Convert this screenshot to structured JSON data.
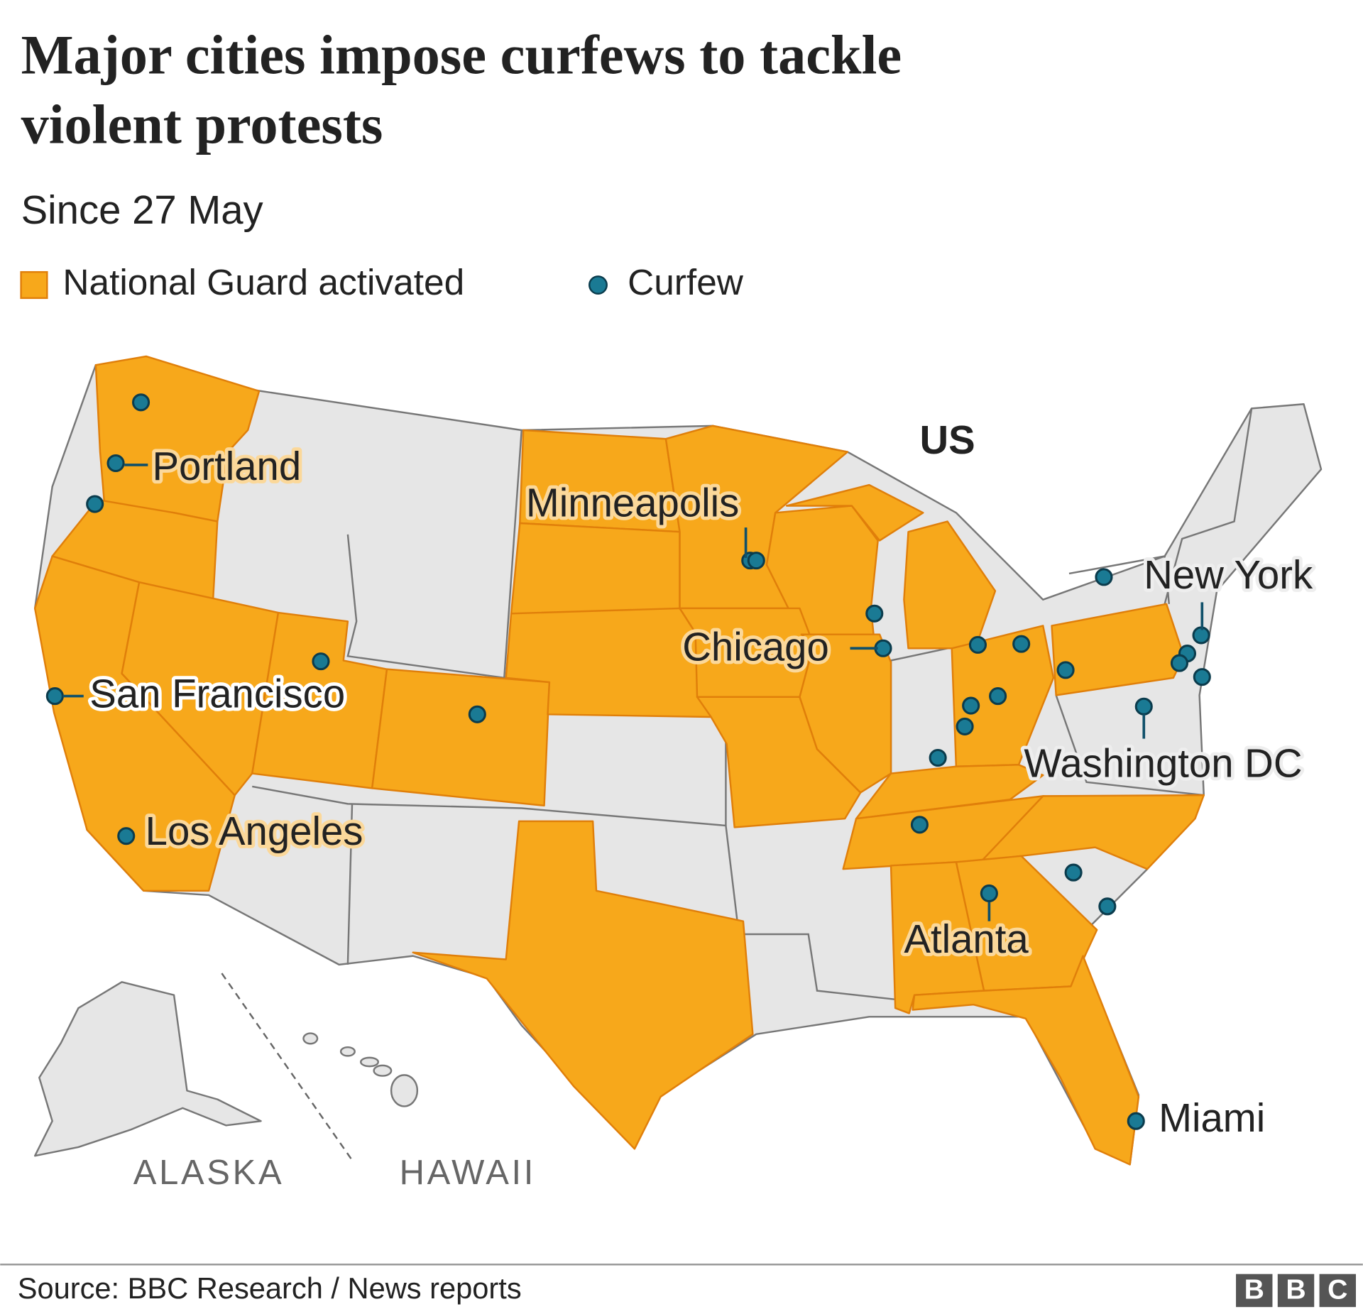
{
  "header": {
    "title_lines": [
      "Major cities impose curfews to tackle",
      "violent protests"
    ],
    "subtitle": "Since 27 May"
  },
  "legend": [
    {
      "label": "National Guard activated",
      "color": "#f7a81b"
    },
    {
      "label": "Curfew",
      "color": "#1a7a94"
    }
  ],
  "map": {
    "country_label": "US",
    "region_labels": [
      "ALASKA",
      "HAWAII"
    ],
    "city_labels": [
      "Portland",
      "Minneapolis",
      "Chicago",
      "San Francisco",
      "Los Angeles",
      "New York",
      "Washington DC",
      "Atlanta",
      "Miami"
    ]
  },
  "footer": {
    "source": "Source: BBC Research / News reports",
    "logo": [
      "B",
      "B",
      "C"
    ]
  }
}
